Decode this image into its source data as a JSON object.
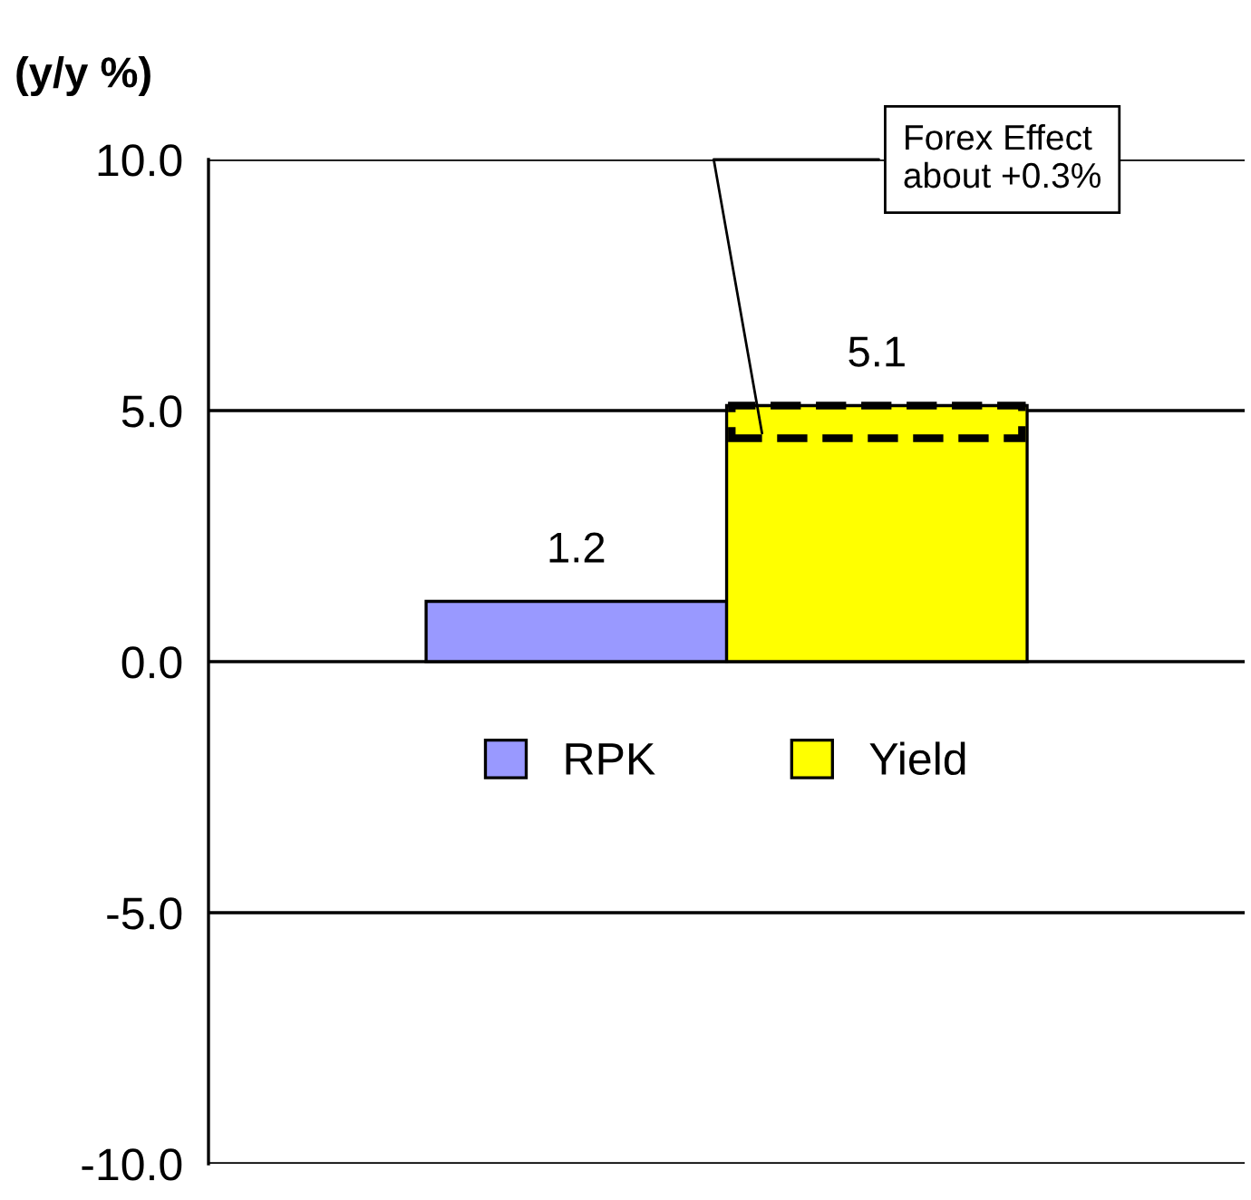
{
  "chart_data": {
    "type": "bar",
    "ylabel": "(y/y %)",
    "categories": [
      null
    ],
    "series": [
      {
        "name": "RPK",
        "color": "#9999ff",
        "values": [
          1.2
        ]
      },
      {
        "name": "Yield",
        "color": "#ffff00",
        "values": [
          5.1
        ]
      }
    ],
    "ylim": [
      -10,
      10
    ],
    "yticks": [
      {
        "value": -10,
        "label": "-10.0"
      },
      {
        "value": -5,
        "label": "-5.0"
      },
      {
        "value": 0,
        "label": "0.0"
      },
      {
        "value": 5,
        "label": "5.0"
      },
      {
        "value": 10,
        "label": "10.0"
      }
    ],
    "grid": "y",
    "legend": "center",
    "data_labels": true,
    "annotations": [
      "Forex Effect\nabout +0.3%"
    ]
  }
}
